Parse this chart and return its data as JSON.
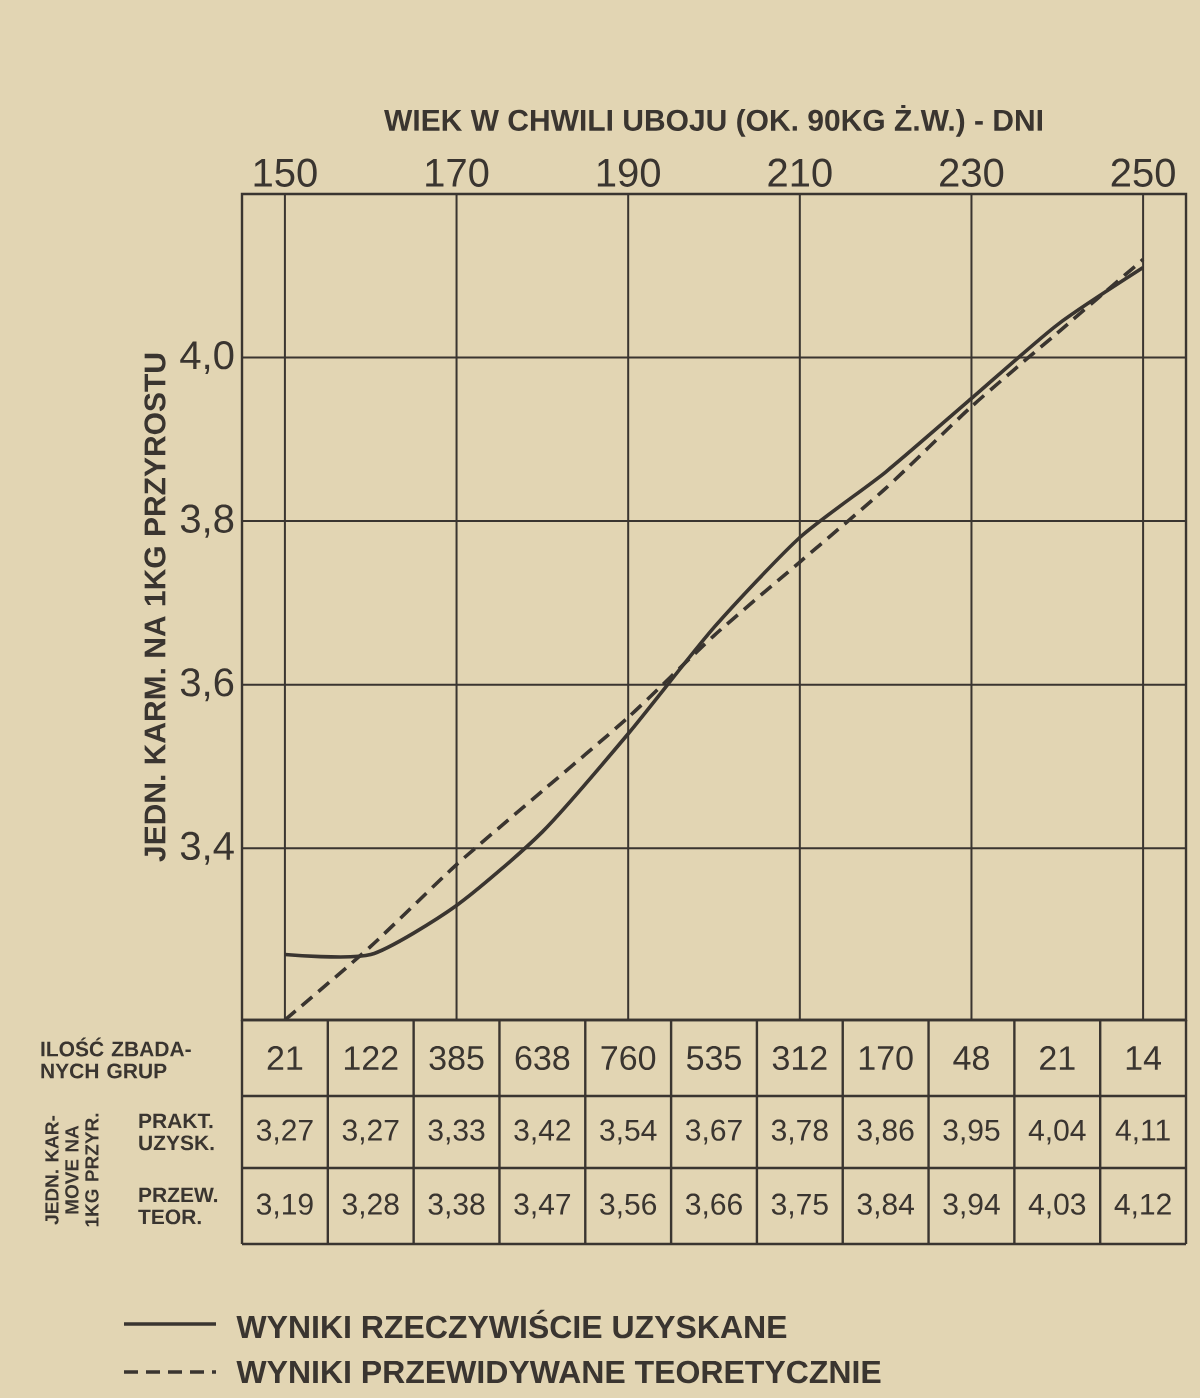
{
  "chart_data": {
    "type": "line",
    "xlabel": "WIEK W CHWILI UBOJU (OK. 90KG Ż.W.) - DNI",
    "ylabel": "JEDN. KARM. NA 1KG PRZYROSTU",
    "x": [
      150,
      160,
      170,
      180,
      190,
      200,
      210,
      220,
      230,
      240,
      250
    ],
    "xlim": [
      145,
      255
    ],
    "xticks": [
      150,
      170,
      190,
      210,
      230,
      250
    ],
    "ylim": [
      3.19,
      4.2
    ],
    "yticks": [
      {
        "value": 3.4,
        "label": "3,4"
      },
      {
        "value": 3.6,
        "label": "3,6"
      },
      {
        "value": 3.8,
        "label": "3,8"
      },
      {
        "value": 4.0,
        "label": "4,0"
      }
    ],
    "grid": true,
    "legend": "bottom",
    "series": [
      {
        "name": "WYNIKI RZECZYWIŚCIE UZYSKANE",
        "color": "#3a3530",
        "line_style": "solid",
        "values": [
          3.27,
          3.27,
          3.33,
          3.42,
          3.54,
          3.67,
          3.78,
          3.86,
          3.95,
          4.04,
          4.11
        ]
      },
      {
        "name": "WYNIKI PRZEWIDYWANE TEORETYCZNIE",
        "color": "#3a3530",
        "line_style": "dashed",
        "values": [
          3.19,
          3.28,
          3.38,
          3.47,
          3.56,
          3.66,
          3.75,
          3.84,
          3.94,
          4.03,
          4.12
        ]
      }
    ],
    "annotations": [
      "ILOŚĆ ZBADA-NYCH GRUP",
      "21",
      "122",
      "385",
      "638",
      "760",
      "535",
      "312",
      "170",
      "48",
      "21",
      "14",
      "JEDN. KAR-MOVE NA 1KG PRZYR.",
      "PRAKT. UZYSK.",
      "3,27",
      "3,27",
      "3,33",
      "3,42",
      "3,54",
      "3,67",
      "3,78",
      "3,86",
      "3,95",
      "4,04",
      "4,11",
      "PRZEW. TEOR.",
      "3,19",
      "3,28",
      "3,38",
      "3,47",
      "3,56",
      "3,66",
      "3,75",
      "3,84",
      "3,94",
      "4,03",
      "4,12"
    ]
  }
}
